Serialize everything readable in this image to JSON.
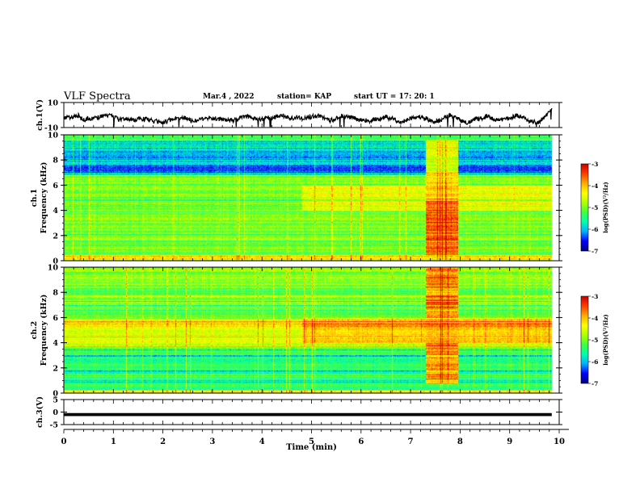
{
  "header": {
    "title": "VLF Spectra",
    "date": "Mar.4 , 2022",
    "station": "station= KAP",
    "start": "start  UT =   17: 20: 1"
  },
  "chart_data": [
    {
      "type": "line",
      "panel": "ch1-waveform",
      "ylabel": "ch.1(V)",
      "ylim": [
        -10,
        10
      ],
      "yticks": [
        "10",
        "-10"
      ],
      "x_range_min": [
        0,
        9.85
      ],
      "description_level": "noisy waveform around -3 V, range approx -8 to 3"
    },
    {
      "type": "heatmap",
      "panel": "ch1-spectrogram",
      "ylabel": "ch.1",
      "ylabel2": "Frequency (kHz)",
      "ylim": [
        0,
        10
      ],
      "yticks": [
        "0",
        "2",
        "4",
        "6",
        "8",
        "10"
      ],
      "colorbar": {
        "label": "log(PSD)(V²/Hz)",
        "range": [
          -7,
          -3
        ],
        "ticks": [
          "-3",
          "-4",
          "-5",
          "-6",
          "-7"
        ]
      },
      "features": [
        {
          "t_min": [
            0,
            9.85
          ],
          "f_khz": [
            7,
            9.5
          ],
          "level": -6.2
        },
        {
          "t_min": [
            0,
            9.85
          ],
          "f_khz": [
            0,
            6.5
          ],
          "level": -5.0
        },
        {
          "t_min": [
            7.3,
            7.95
          ],
          "f_khz": [
            0.5,
            5
          ],
          "level": -3.6
        },
        {
          "t_min": [
            4.8,
            9.85
          ],
          "f_khz": [
            4,
            6
          ],
          "level": -4.5
        }
      ]
    },
    {
      "type": "heatmap",
      "panel": "ch2-spectrogram",
      "ylabel": "ch.2",
      "ylabel2": "Frequency (kHz)",
      "ylim": [
        0,
        10
      ],
      "yticks": [
        "0",
        "2",
        "4",
        "6",
        "8",
        "10"
      ],
      "colorbar": {
        "label": "log(PSD)(V²/Hz)",
        "range": [
          -7,
          -3
        ],
        "ticks": [
          "-3",
          "-4",
          "-5",
          "-6",
          "-7"
        ]
      },
      "features": [
        {
          "t_min": [
            0,
            9.85
          ],
          "f_khz": [
            6.5,
            10
          ],
          "level": -5.2
        },
        {
          "t_min": [
            0,
            9.85
          ],
          "f_khz": [
            4,
            6
          ],
          "level": -4.3
        },
        {
          "t_min": [
            7.3,
            7.95
          ],
          "f_khz": [
            1,
            10
          ],
          "level": -3.7
        },
        {
          "t_min": [
            0,
            9.85
          ],
          "f_khz": [
            0,
            3.5
          ],
          "level": -5.3
        }
      ]
    },
    {
      "type": "line",
      "panel": "ch3-waveform",
      "ylabel": "ch.3(V)",
      "ylim": [
        -5,
        5
      ],
      "yticks": [
        "5",
        "0",
        "-5"
      ],
      "x_range_min": [
        0,
        9.85
      ],
      "level_v": -1
    }
  ],
  "xaxis": {
    "label": "Time  (min)",
    "ticks": [
      "0",
      "1",
      "2",
      "3",
      "4",
      "5",
      "6",
      "7",
      "8",
      "9",
      "10"
    ],
    "range": [
      0,
      10
    ]
  },
  "colors": {
    "colormap": [
      "#000080",
      "#0000ff",
      "#00b0ff",
      "#00ffb0",
      "#40ff40",
      "#b0ff00",
      "#ffff00",
      "#ffb000",
      "#ff4000",
      "#d00000",
      "#ffffff"
    ]
  }
}
